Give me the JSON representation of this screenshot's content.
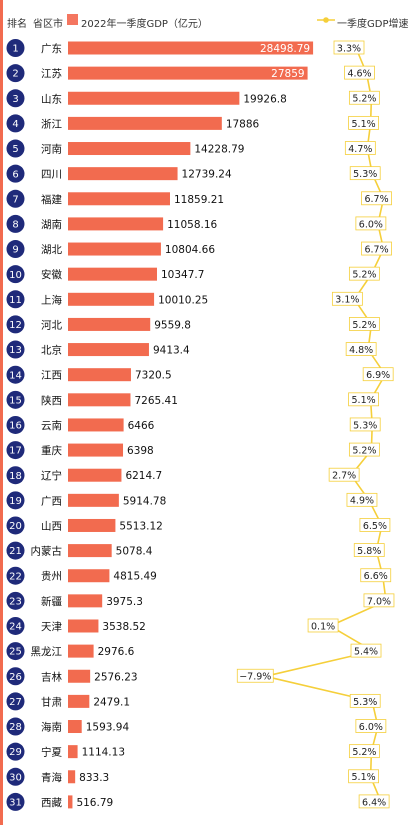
{
  "header": {
    "rank_label": "排名",
    "province_label": "省区市",
    "gdp_label": "2022年一季度GDP（亿元）",
    "growth_label": "一季度GDP增速"
  },
  "colors": {
    "bar": "#f26b4f",
    "rank_circle": "#1f2a7a",
    "growth_line": "#f5cf3a"
  },
  "chart_data": {
    "type": "bar",
    "orientation": "horizontal",
    "categories": [
      "广东",
      "江苏",
      "山东",
      "浙江",
      "河南",
      "四川",
      "福建",
      "湖南",
      "湖北",
      "安徽",
      "上海",
      "河北",
      "北京",
      "江西",
      "陕西",
      "云南",
      "重庆",
      "辽宁",
      "广西",
      "山西",
      "内蒙古",
      "贵州",
      "新疆",
      "天津",
      "黑龙江",
      "吉林",
      "甘肃",
      "海南",
      "宁夏",
      "青海",
      "西藏"
    ],
    "ranks": [
      "1",
      "2",
      "3",
      "4",
      "5",
      "6",
      "7",
      "8",
      "9",
      "10",
      "11",
      "12",
      "13",
      "14",
      "15",
      "16",
      "17",
      "18",
      "19",
      "20",
      "21",
      "22",
      "23",
      "24",
      "25",
      "26",
      "27",
      "28",
      "29",
      "30",
      "31"
    ],
    "series": [
      {
        "name": "2022年一季度GDP（亿元）",
        "values": [
          28498.79,
          27859,
          19926.8,
          17886,
          14228.79,
          12739.24,
          11859.21,
          11058.16,
          10804.66,
          10347.7,
          10010.25,
          9559.8,
          9413.4,
          7320.5,
          7265.41,
          6466,
          6398,
          6214.7,
          5914.78,
          5513.12,
          5078.4,
          4815.49,
          3975.3,
          3538.52,
          2976.6,
          2576.23,
          2479.1,
          1593.94,
          1114.13,
          833.3,
          516.79
        ],
        "labels": [
          "28498.79",
          "27859",
          "19926.8",
          "17886",
          "14228.79",
          "12739.24",
          "11859.21",
          "11058.16",
          "10804.66",
          "10347.7",
          "10010.25",
          "9559.8",
          "9413.4",
          "7320.5",
          "7265.41",
          "6466",
          "6398",
          "6214.7",
          "5914.78",
          "5513.12",
          "5078.4",
          "4815.49",
          "3975.3",
          "3538.52",
          "2976.6",
          "2576.23",
          "2479.1",
          "1593.94",
          "1114.13",
          "833.3",
          "516.79"
        ]
      },
      {
        "name": "一季度GDP增速",
        "values": [
          3.3,
          4.6,
          5.2,
          5.1,
          4.7,
          5.3,
          6.7,
          6.0,
          6.7,
          5.2,
          3.1,
          5.2,
          4.8,
          6.9,
          5.1,
          5.3,
          5.2,
          2.7,
          4.9,
          6.5,
          5.8,
          6.6,
          7.0,
          0.1,
          5.4,
          -7.9,
          5.3,
          6.0,
          5.2,
          5.1,
          6.4
        ],
        "labels": [
          "3.3%",
          "4.6%",
          "5.2%",
          "5.1%",
          "4.7%",
          "5.3%",
          "6.7%",
          "6.0%",
          "6.7%",
          "5.2%",
          "3.1%",
          "5.2%",
          "4.8%",
          "6.9%",
          "5.1%",
          "5.3%",
          "5.2%",
          "2.7%",
          "4.9%",
          "6.5%",
          "5.8%",
          "6.6%",
          "7.0%",
          "0.1%",
          "5.4%",
          "−7.9%",
          "5.3%",
          "6.0%",
          "5.2%",
          "5.1%",
          "6.4%"
        ]
      }
    ]
  }
}
